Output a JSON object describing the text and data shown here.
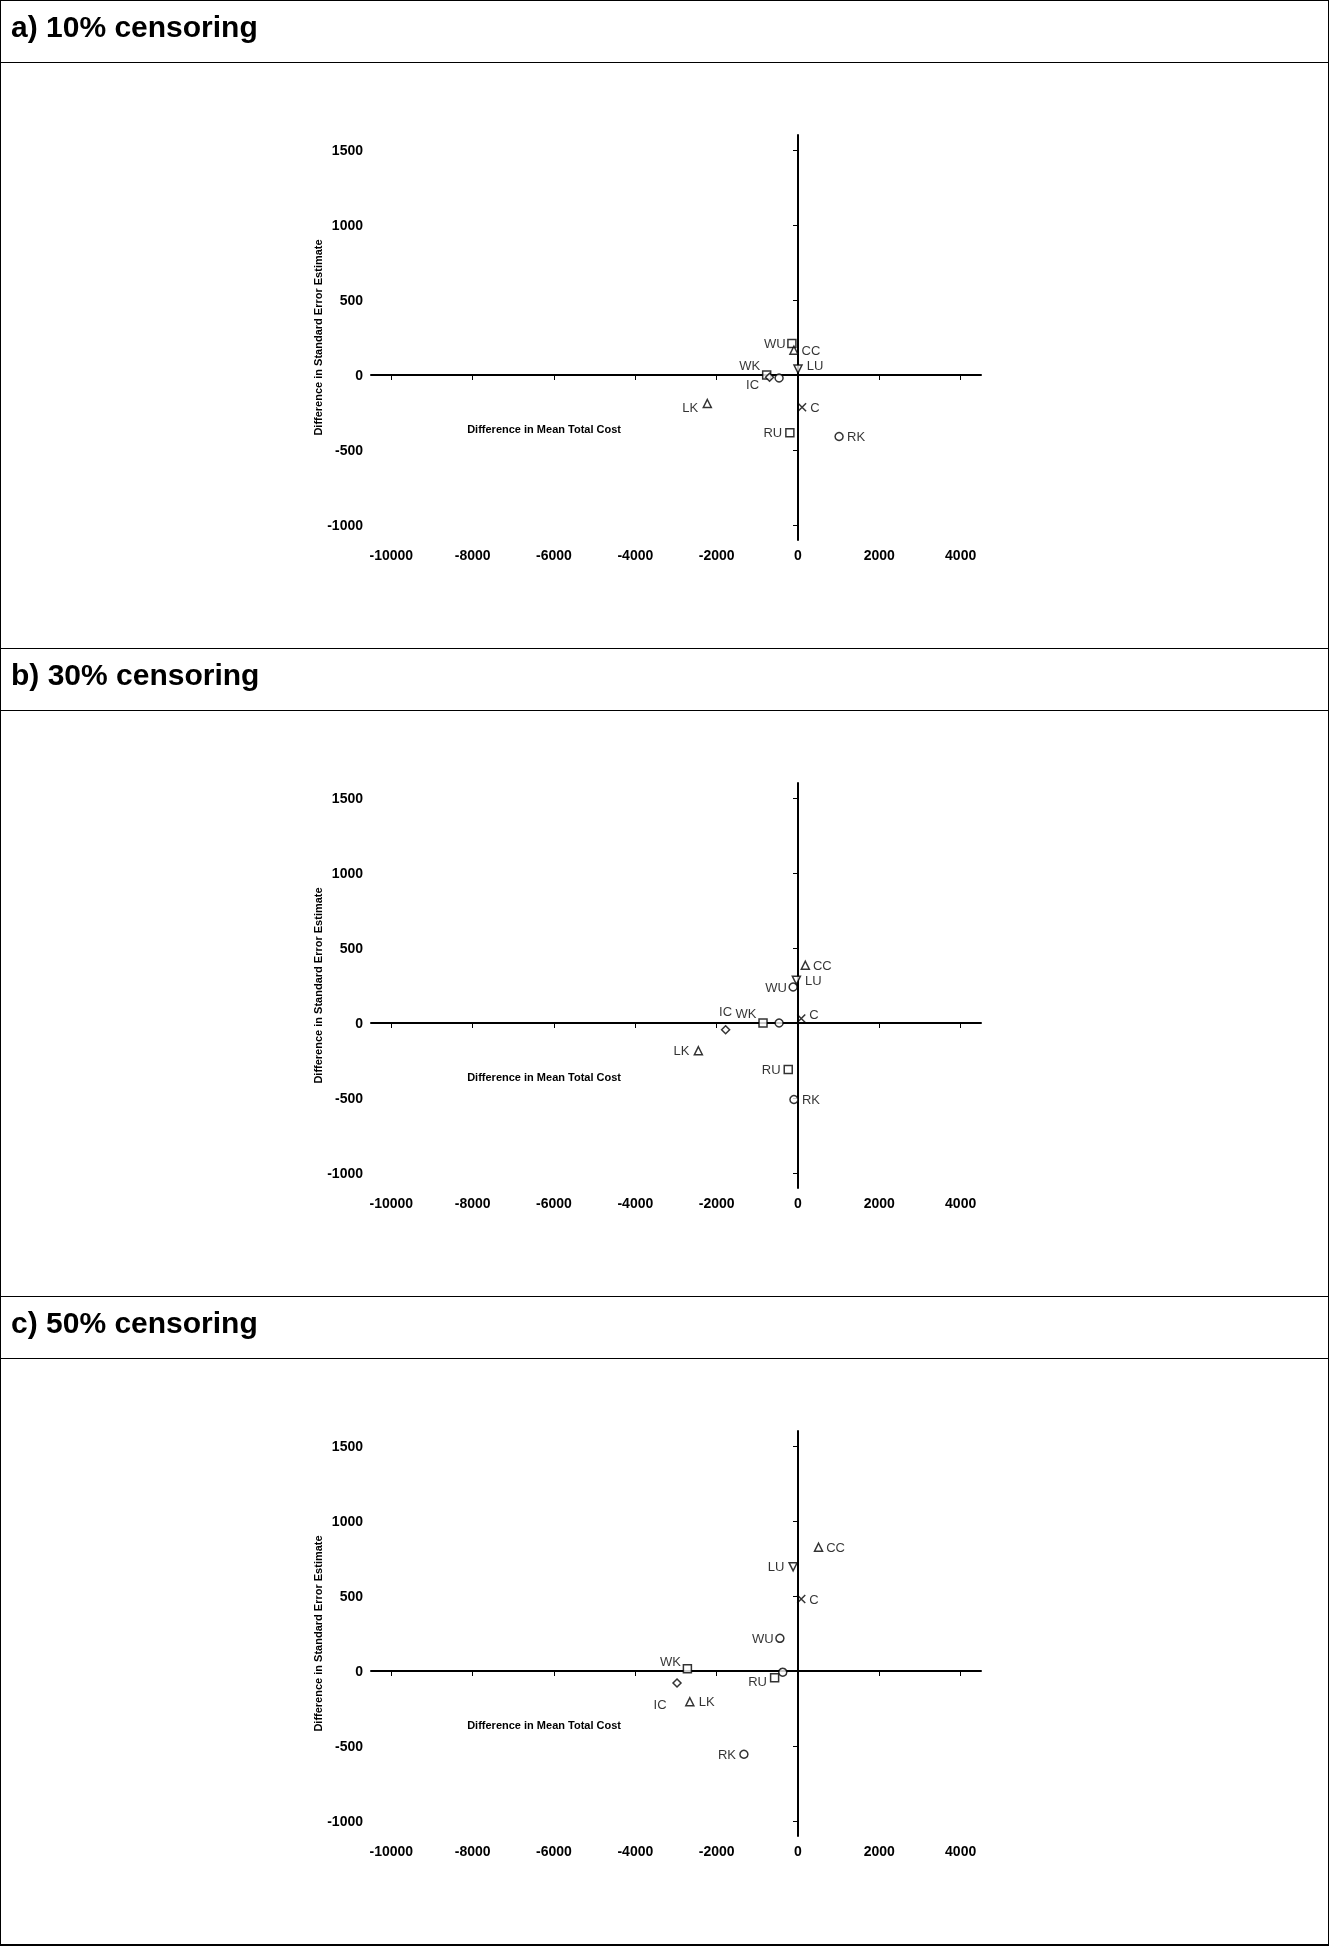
{
  "chart_data": [
    {
      "type": "scatter",
      "title": "a) 10% censoring",
      "xlabel": "Difference in Mean Total Cost",
      "ylabel": "Difference in Standard Error Estimate",
      "xlim": [
        -10500,
        4500
      ],
      "xticks": [
        -10000,
        -8000,
        -6000,
        -4000,
        -2000,
        0,
        2000,
        4000
      ],
      "ylim": [
        -1100,
        1600
      ],
      "yticks": [
        -1000,
        -500,
        0,
        500,
        1000,
        1500
      ],
      "series": [
        {
          "name": "WU",
          "color": "#000000",
          "marker": "square",
          "x": [
            -150
          ],
          "values": [
            210
          ]
        },
        {
          "name": "CC",
          "color": "#000000",
          "marker": "triangle",
          "x": [
            -100
          ],
          "values": [
            165
          ]
        },
        {
          "name": "LU",
          "color": "#000000",
          "marker": "triangle-down",
          "x": [
            0
          ],
          "values": [
            40
          ]
        },
        {
          "name": "WK",
          "color": "#000000",
          "marker": "square",
          "x": [
            -770
          ],
          "values": [
            0
          ]
        },
        {
          "name": "IC",
          "color": "#000000",
          "marker": "diamond",
          "x": [
            -700
          ],
          "values": [
            -15
          ]
        },
        {
          "color": "#000000",
          "marker": "circle",
          "x": [
            -465
          ],
          "values": [
            -20
          ]
        },
        {
          "name": "C",
          "color": "#000000",
          "marker": "cross",
          "x": [
            100
          ],
          "values": [
            -215
          ]
        },
        {
          "name": "LK",
          "color": "#000000",
          "marker": "triangle",
          "x": [
            -2230
          ],
          "values": [
            -190
          ]
        },
        {
          "name": "RU",
          "color": "#000000",
          "marker": "square",
          "x": [
            -200
          ],
          "values": [
            -385
          ]
        },
        {
          "name": "RK",
          "color": "#000000",
          "marker": "circle",
          "x": [
            1010
          ],
          "values": [
            -410
          ]
        }
      ]
    },
    {
      "type": "scatter",
      "title": "b) 30% censoring",
      "xlabel": "Difference in Mean Total Cost",
      "ylabel": "Difference in Standard Error Estimate",
      "xlim": [
        -10500,
        4500
      ],
      "xticks": [
        -10000,
        -8000,
        -6000,
        -4000,
        -2000,
        0,
        2000,
        4000
      ],
      "ylim": [
        -1100,
        1600
      ],
      "yticks": [
        -1000,
        -500,
        0,
        500,
        1000,
        1500
      ],
      "series": [
        {
          "name": "CC",
          "color": "#000000",
          "marker": "triangle",
          "x": [
            180
          ],
          "values": [
            385
          ]
        },
        {
          "name": "LU",
          "color": "#000000",
          "marker": "triangle-down",
          "x": [
            -40
          ],
          "values": [
            285
          ]
        },
        {
          "name": "WU",
          "color": "#000000",
          "marker": "circle",
          "x": [
            -120
          ],
          "values": [
            240
          ]
        },
        {
          "name": "C",
          "color": "#000000",
          "marker": "cross",
          "x": [
            80
          ],
          "values": [
            30
          ]
        },
        {
          "name": "WK",
          "color": "#000000",
          "marker": "square",
          "x": [
            -860
          ],
          "values": [
            0
          ]
        },
        {
          "color": "#000000",
          "marker": "circle",
          "x": [
            -465
          ],
          "values": [
            0
          ]
        },
        {
          "name": "IC",
          "color": "#000000",
          "marker": "diamond",
          "x": [
            -1780
          ],
          "values": [
            -45
          ]
        },
        {
          "name": "LK",
          "color": "#000000",
          "marker": "triangle",
          "x": [
            -2450
          ],
          "values": [
            -185
          ]
        },
        {
          "name": "RU",
          "color": "#000000",
          "marker": "square",
          "x": [
            -240
          ],
          "values": [
            -310
          ]
        },
        {
          "name": "RK",
          "color": "#000000",
          "marker": "circle",
          "x": [
            -100
          ],
          "values": [
            -510
          ]
        }
      ]
    },
    {
      "type": "scatter",
      "title": "c) 50% censoring",
      "xlabel": "Difference in Mean Total Cost",
      "ylabel": "Difference in Standard Error Estimate",
      "xlim": [
        -10500,
        4500
      ],
      "xticks": [
        -10000,
        -8000,
        -6000,
        -4000,
        -2000,
        0,
        2000,
        4000
      ],
      "ylim": [
        -1100,
        1600
      ],
      "yticks": [
        -1000,
        -500,
        0,
        500,
        1000,
        1500
      ],
      "series": [
        {
          "name": "CC",
          "color": "#000000",
          "marker": "triangle",
          "x": [
            505
          ],
          "values": [
            825
          ]
        },
        {
          "name": "LU",
          "color": "#000000",
          "marker": "triangle-down",
          "x": [
            -120
          ],
          "values": [
            695
          ]
        },
        {
          "name": "C",
          "color": "#000000",
          "marker": "cross",
          "x": [
            80
          ],
          "values": [
            480
          ]
        },
        {
          "name": "WU",
          "color": "#000000",
          "marker": "circle",
          "x": [
            -445
          ],
          "values": [
            218
          ]
        },
        {
          "name": "WK",
          "color": "#000000",
          "marker": "square",
          "x": [
            -2720
          ],
          "values": [
            15
          ]
        },
        {
          "color": "#000000",
          "marker": "circle",
          "x": [
            -375
          ],
          "values": [
            -8
          ]
        },
        {
          "name": "RU",
          "color": "#000000",
          "marker": "square",
          "x": [
            -575
          ],
          "values": [
            -45
          ]
        },
        {
          "name": "IC",
          "color": "#000000",
          "marker": "diamond",
          "x": [
            -2975
          ],
          "values": [
            -80
          ]
        },
        {
          "name": "LK",
          "color": "#000000",
          "marker": "triangle",
          "x": [
            -2660
          ],
          "values": [
            -205
          ]
        },
        {
          "name": "RK",
          "color": "#000000",
          "marker": "circle",
          "x": [
            -1330
          ],
          "values": [
            -555
          ]
        }
      ]
    }
  ]
}
